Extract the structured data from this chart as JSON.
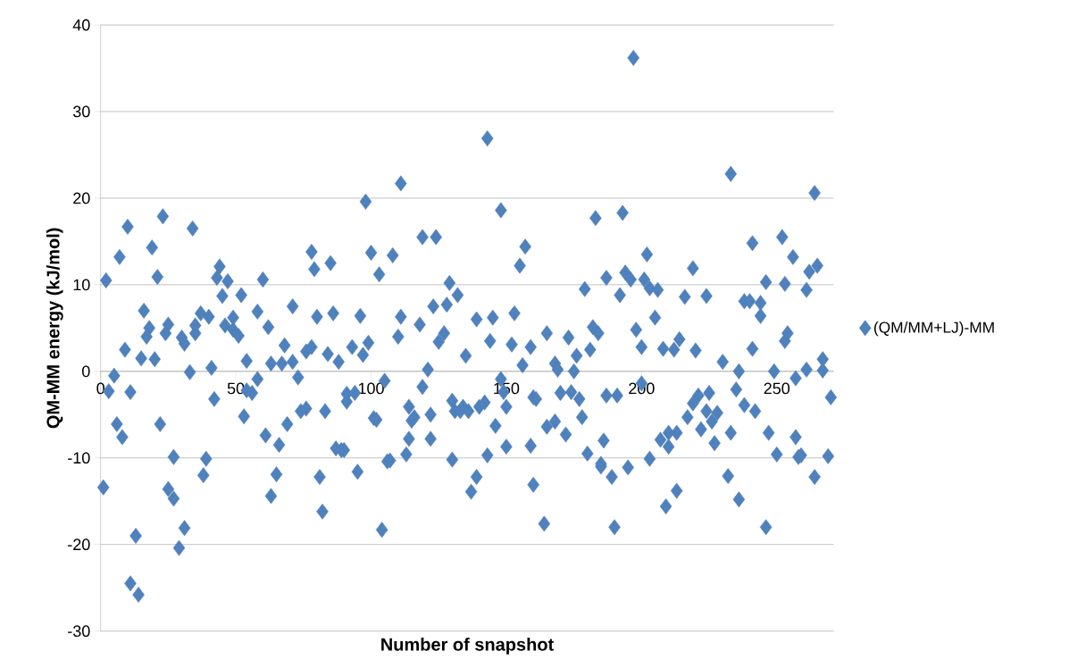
{
  "chart_data": {
    "type": "scatter",
    "xlabel": "Number of snapshot",
    "ylabel": "QM-MM energy (kJ/mol)",
    "xlim": [
      0,
      271
    ],
    "ylim": [
      -30,
      40
    ],
    "xticks": [
      0,
      50,
      100,
      150,
      200,
      250
    ],
    "yticks": [
      -30,
      -20,
      -10,
      0,
      10,
      20,
      30,
      40
    ],
    "grid": "y",
    "legend": "right",
    "marker": "diamond",
    "series": [
      {
        "name": "(QM/MM+LJ)-MM",
        "color": "#4f81bd",
        "x": [
          2,
          5,
          3,
          1,
          6,
          8,
          7,
          10,
          9,
          11,
          13,
          11,
          14,
          15,
          16,
          17,
          18,
          19,
          20,
          21,
          22,
          23,
          24,
          25,
          27,
          25,
          27,
          29,
          31,
          30,
          31,
          33,
          34,
          35,
          35,
          37,
          38,
          39,
          40,
          41,
          42,
          43,
          44,
          45,
          46,
          47,
          49,
          49,
          51,
          52,
          53,
          54,
          54,
          56,
          58,
          58,
          60,
          61,
          62,
          63,
          63,
          65,
          66,
          67,
          68,
          69,
          71,
          71,
          73,
          74,
          76,
          76,
          78,
          78,
          79,
          80,
          81,
          82,
          83,
          84,
          85,
          86,
          87,
          88,
          89,
          90,
          91,
          91,
          93,
          94,
          95,
          96,
          97,
          98,
          99,
          100,
          101,
          102,
          103,
          104,
          105,
          106,
          107,
          108,
          110,
          111,
          111,
          114,
          113,
          114,
          115,
          116,
          118,
          119,
          119,
          121,
          122,
          122,
          123,
          124,
          125,
          127,
          128,
          129,
          130,
          132,
          130,
          131,
          133,
          134,
          135,
          136,
          139,
          137,
          139,
          140,
          142,
          143,
          143,
          144,
          145,
          146,
          148,
          148,
          149,
          150,
          150,
          152,
          153,
          155,
          156,
          157,
          159,
          160,
          159,
          160,
          164,
          161,
          165,
          165,
          168,
          169,
          170,
          172,
          168,
          173,
          175,
          174,
          176,
          177,
          178,
          179,
          180,
          181,
          182,
          183,
          184,
          185,
          185,
          186,
          187,
          187,
          189,
          190,
          191,
          192,
          193,
          194,
          195,
          196,
          197,
          198,
          200,
          201,
          202,
          200,
          203,
          205,
          206,
          203,
          209,
          207,
          208,
          210,
          210,
          213,
          212,
          214,
          213,
          216,
          217,
          219,
          219,
          220,
          221,
          222,
          224,
          225,
          224,
          226,
          227,
          228,
          230,
          232,
          233,
          233,
          235,
          236,
          236,
          238,
          240,
          238,
          241,
          241,
          242,
          244,
          244,
          246,
          246,
          247,
          249,
          250,
          252,
          253,
          253,
          254,
          256,
          257,
          257,
          258,
          259,
          261,
          261,
          262,
          264,
          264,
          265,
          267,
          267,
          269,
          270
        ],
        "values": [
          10.5,
          -0.5,
          -2.3,
          -13.4,
          -6.1,
          -7.6,
          13.2,
          16.7,
          2.5,
          -2.4,
          -19.0,
          -24.5,
          -25.8,
          1.5,
          7.0,
          4.0,
          5.0,
          14.3,
          1.4,
          10.9,
          -6.1,
          17.9,
          4.4,
          5.4,
          -9.9,
          -13.6,
          -14.7,
          -20.4,
          -18.1,
          3.9,
          3.2,
          -0.1,
          16.5,
          4.4,
          5.3,
          6.7,
          -12.0,
          -10.1,
          6.3,
          0.4,
          -3.2,
          10.8,
          12.1,
          8.7,
          5.3,
          10.4,
          6.2,
          4.8,
          4.1,
          8.8,
          -5.2,
          1.2,
          -2.2,
          -2.5,
          6.9,
          -0.9,
          10.6,
          -7.4,
          5.1,
          0.9,
          -14.4,
          -11.9,
          -8.5,
          0.9,
          3.0,
          -6.1,
          7.5,
          1.1,
          -0.7,
          -4.6,
          -4.3,
          2.3,
          2.8,
          13.8,
          11.8,
          6.3,
          -12.2,
          -16.2,
          -4.6,
          2.0,
          12.5,
          6.7,
          -8.9,
          1.1,
          -9.1,
          -9.1,
          -2.6,
          -3.5,
          2.8,
          -2.5,
          -11.6,
          6.4,
          1.9,
          19.6,
          3.3,
          13.7,
          -5.4,
          -5.6,
          11.2,
          -18.3,
          -1.1,
          -10.4,
          -10.3,
          13.4,
          4.0,
          6.3,
          21.7,
          -7.8,
          -9.6,
          -4.1,
          -5.7,
          -5.3,
          5.4,
          -1.8,
          15.5,
          0.2,
          -7.8,
          -5.0,
          7.5,
          15.5,
          3.4,
          4.4,
          7.7,
          10.2,
          -10.2,
          8.8,
          -3.4,
          -4.6,
          -4.6,
          -4.1,
          1.8,
          -4.6,
          -12.2,
          -13.9,
          6.0,
          -4.1,
          -3.6,
          26.9,
          -9.7,
          3.5,
          6.2,
          -6.3,
          18.6,
          -0.9,
          -2.4,
          -4.1,
          -8.7,
          3.1,
          6.7,
          12.2,
          0.7,
          14.4,
          -8.6,
          -3.0,
          2.8,
          -13.1,
          -17.6,
          -3.2,
          4.4,
          -6.4,
          0.9,
          0.2,
          -2.5,
          -7.3,
          -5.8,
          3.9,
          0.0,
          -2.4,
          1.8,
          -3.2,
          -5.3,
          9.5,
          -9.5,
          2.5,
          5.1,
          17.7,
          4.4,
          -10.7,
          -11.0,
          -8.0,
          10.8,
          -2.8,
          -12.2,
          -18.0,
          -2.8,
          8.8,
          18.3,
          11.4,
          -11.1,
          10.6,
          36.2,
          4.8,
          -1.4,
          10.6,
          13.5,
          2.8,
          9.6,
          6.2,
          9.4,
          -10.1,
          -15.6,
          -7.9,
          2.6,
          -7.1,
          -8.7,
          -13.8,
          2.5,
          3.7,
          -7.1,
          8.6,
          -5.3,
          11.9,
          -3.7,
          2.4,
          -2.8,
          -6.7,
          -4.6,
          -2.5,
          8.7,
          -5.8,
          -8.3,
          -4.8,
          1.1,
          -12.1,
          -7.1,
          22.8,
          -2.1,
          -14.8,
          0.0,
          8.1,
          8.1,
          -3.9,
          2.6,
          14.8,
          -4.6,
          6.4,
          7.9,
          -18.0,
          10.3,
          -7.1,
          0.0,
          -9.6,
          15.5,
          3.5,
          10.1,
          4.4,
          13.2,
          -0.8,
          -7.6,
          -9.9,
          -9.7,
          0.2,
          9.4,
          11.5,
          20.6,
          -12.2,
          12.2,
          1.4,
          0.1,
          -9.8,
          -3.0
        ]
      }
    ]
  }
}
